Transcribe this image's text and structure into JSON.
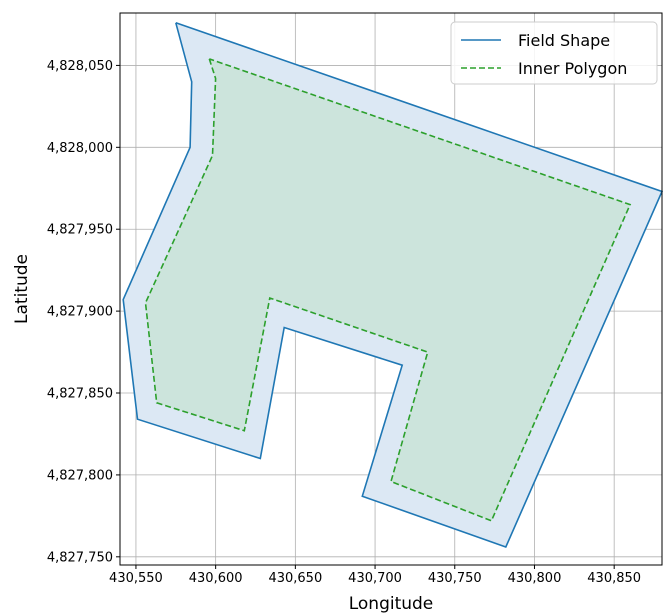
{
  "chart_data": {
    "type": "line",
    "title": "",
    "xlabel": "Longitude",
    "ylabel": "Latitude",
    "xlim": [
      430540,
      430880
    ],
    "ylim": [
      4827745,
      4828082
    ],
    "xticks": [
      430550,
      430600,
      430650,
      430700,
      430750,
      430800,
      430850
    ],
    "yticks": [
      4827750,
      4827800,
      4827850,
      4827900,
      4827950,
      4828000,
      4828050
    ],
    "xtick_labels": [
      "430,550",
      "430,600",
      "430,650",
      "430,700",
      "430,750",
      "430,800",
      "430,850"
    ],
    "ytick_labels": [
      "4,827,750",
      "4,827,800",
      "4,827,850",
      "4,827,900",
      "4,827,950",
      "4,828,000",
      "4,828,050"
    ],
    "grid": true,
    "legend_position": "top-right",
    "series": [
      {
        "name": "Field Shape",
        "style": "solid",
        "color": "#1f77b4",
        "fill": "#dce8f4",
        "points": [
          [
            430575,
            4828076
          ],
          [
            430585,
            4828040
          ],
          [
            430584,
            4828000
          ],
          [
            430542,
            4827907
          ],
          [
            430551,
            4827834
          ],
          [
            430628,
            4827810
          ],
          [
            430643,
            4827890
          ],
          [
            430717,
            4827867
          ],
          [
            430692,
            4827787
          ],
          [
            430782,
            4827756
          ],
          [
            430880,
            4827973
          ],
          [
            430575,
            4828076
          ]
        ]
      },
      {
        "name": "Inner Polygon",
        "style": "dashed",
        "color": "#2ca02c",
        "fill": "#cce4dc",
        "points": [
          [
            430596,
            4828054
          ],
          [
            430600,
            4828042
          ],
          [
            430598,
            4827995
          ],
          [
            430556,
            4827905
          ],
          [
            430563,
            4827844
          ],
          [
            430618,
            4827827
          ],
          [
            430634,
            4827908
          ],
          [
            430733,
            4827875
          ],
          [
            430710,
            4827796
          ],
          [
            430773,
            4827772
          ],
          [
            430860,
            4827965
          ],
          [
            430596,
            4828054
          ]
        ]
      }
    ]
  }
}
